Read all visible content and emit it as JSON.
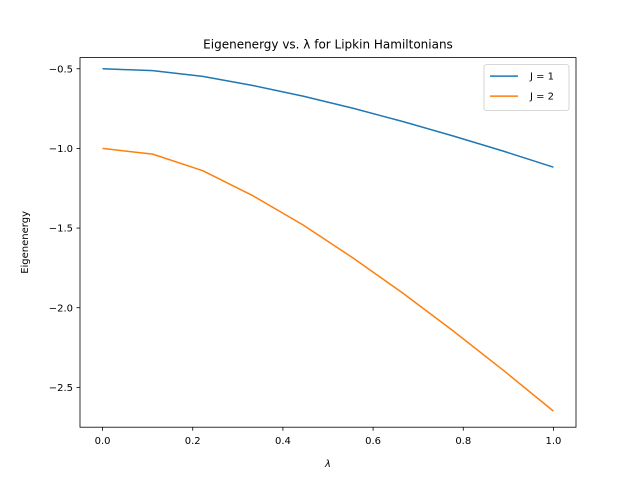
{
  "chart_data": {
    "type": "line",
    "title": "Eigenenergy vs. λ for Lipkin Hamiltonians",
    "xlabel": "λ",
    "ylabel": "Eigenenergy",
    "xlim": [
      -0.05,
      1.05
    ],
    "ylim": [
      -2.75,
      -0.43
    ],
    "xticks": [
      0.0,
      0.2,
      0.4,
      0.6,
      0.8,
      1.0
    ],
    "xtick_labels": [
      "0.0",
      "0.2",
      "0.4",
      "0.6",
      "0.8",
      "1.0"
    ],
    "yticks": [
      -0.5,
      -1.0,
      -1.5,
      -2.0,
      -2.5
    ],
    "ytick_labels": [
      "−0.5",
      "−1.0",
      "−1.5",
      "−2.0",
      "−2.5"
    ],
    "grid": false,
    "legend_position": "top-right",
    "x": [
      0.0,
      0.1111,
      0.2222,
      0.3333,
      0.4444,
      0.5556,
      0.6667,
      0.7778,
      0.8889,
      1.0
    ],
    "series": [
      {
        "name": "J = 1",
        "color": "#1f77b4",
        "values": [
          -0.5,
          -0.512,
          -0.548,
          -0.605,
          -0.672,
          -0.748,
          -0.832,
          -0.922,
          -1.017,
          -1.118
        ]
      },
      {
        "name": "J = 2",
        "color": "#ff7f0e",
        "values": [
          -1.0,
          -1.036,
          -1.14,
          -1.297,
          -1.48,
          -1.688,
          -1.91,
          -2.146,
          -2.393,
          -2.649
        ]
      }
    ]
  }
}
